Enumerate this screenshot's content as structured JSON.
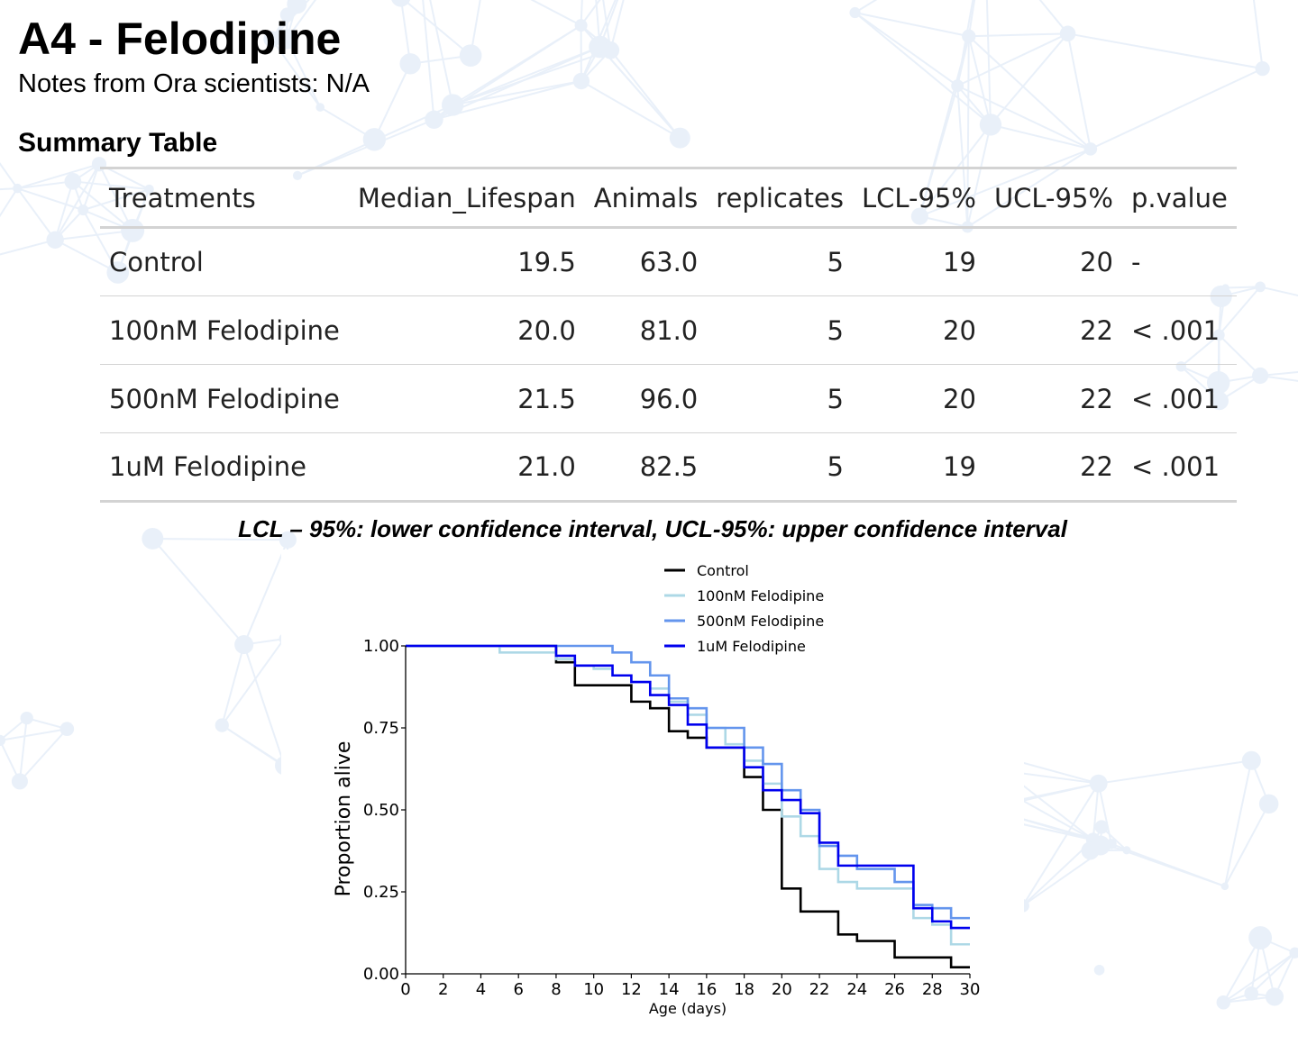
{
  "page": {
    "title": "A4 - Felodipine",
    "notes": "Notes from Ora scientists: N/A",
    "summary_heading": "Summary Table",
    "caption": "LCL – 95%: lower confidence interval, UCL-95%: upper confidence interval"
  },
  "table": {
    "headers": [
      "Treatments",
      "Median_Lifespan",
      "Animals",
      "replicates",
      "LCL-95%",
      "UCL-95%",
      "p.value"
    ],
    "rows": [
      [
        "Control",
        "19.5",
        "63.0",
        "5",
        "19",
        "20",
        "-"
      ],
      [
        "100nM Felodipine",
        "20.0",
        "81.0",
        "5",
        "20",
        "22",
        "< .001"
      ],
      [
        "500nM Felodipine",
        "21.5",
        "96.0",
        "5",
        "20",
        "22",
        "< .001"
      ],
      [
        "1uM Felodipine",
        "21.0",
        "82.5",
        "5",
        "19",
        "22",
        "< .001"
      ]
    ]
  },
  "chart_data": {
    "type": "line",
    "step": true,
    "title": "",
    "xlabel": "Age (days)",
    "ylabel": "Proportion alive",
    "xlim": [
      0,
      30
    ],
    "ylim": [
      0,
      1
    ],
    "xticks": [
      "0",
      "2",
      "4",
      "6",
      "8",
      "10",
      "12",
      "14",
      "16",
      "18",
      "20",
      "22",
      "24",
      "26",
      "28",
      "30"
    ],
    "yticks": [
      "0.00",
      "0.25",
      "0.50",
      "0.75",
      "1.00"
    ],
    "legend_position": "top",
    "series": [
      {
        "name": "Control",
        "color": "#000000",
        "x": [
          0,
          8,
          9,
          11,
          12,
          13,
          14,
          15,
          16,
          17,
          18,
          19,
          20,
          21,
          22,
          23,
          24,
          25,
          26,
          27,
          28,
          29,
          30
        ],
        "y": [
          1.0,
          0.95,
          0.88,
          0.88,
          0.83,
          0.81,
          0.74,
          0.72,
          0.69,
          0.69,
          0.6,
          0.5,
          0.26,
          0.19,
          0.19,
          0.12,
          0.1,
          0.1,
          0.05,
          0.05,
          0.05,
          0.02,
          0.02
        ]
      },
      {
        "name": "100nM Felodipine",
        "color": "#add8e6",
        "x": [
          0,
          5,
          8,
          9,
          10,
          11,
          12,
          13,
          14,
          15,
          16,
          17,
          18,
          19,
          20,
          21,
          22,
          23,
          24,
          25,
          26,
          27,
          28,
          29,
          30
        ],
        "y": [
          1.0,
          0.98,
          0.96,
          0.94,
          0.93,
          0.91,
          0.89,
          0.87,
          0.83,
          0.79,
          0.75,
          0.7,
          0.65,
          0.58,
          0.48,
          0.42,
          0.32,
          0.28,
          0.26,
          0.26,
          0.26,
          0.17,
          0.15,
          0.09,
          0.09
        ]
      },
      {
        "name": "500nM Felodipine",
        "color": "#6495ed",
        "x": [
          0,
          8,
          11,
          12,
          13,
          14,
          15,
          16,
          17,
          18,
          19,
          20,
          21,
          22,
          23,
          24,
          25,
          26,
          27,
          28,
          29,
          30
        ],
        "y": [
          1.0,
          1.0,
          0.98,
          0.95,
          0.91,
          0.84,
          0.81,
          0.75,
          0.75,
          0.69,
          0.64,
          0.56,
          0.5,
          0.39,
          0.36,
          0.32,
          0.32,
          0.28,
          0.21,
          0.2,
          0.17,
          0.17
        ]
      },
      {
        "name": "1uM Felodipine",
        "color": "#0000ee",
        "x": [
          0,
          8,
          9,
          10,
          11,
          12,
          13,
          14,
          15,
          16,
          17,
          18,
          19,
          20,
          21,
          22,
          23,
          24,
          25,
          26,
          27,
          28,
          29,
          30
        ],
        "y": [
          1.0,
          0.97,
          0.94,
          0.94,
          0.91,
          0.89,
          0.85,
          0.82,
          0.76,
          0.69,
          0.69,
          0.63,
          0.56,
          0.53,
          0.49,
          0.4,
          0.33,
          0.33,
          0.33,
          0.33,
          0.2,
          0.16,
          0.14,
          0.14
        ]
      }
    ]
  }
}
